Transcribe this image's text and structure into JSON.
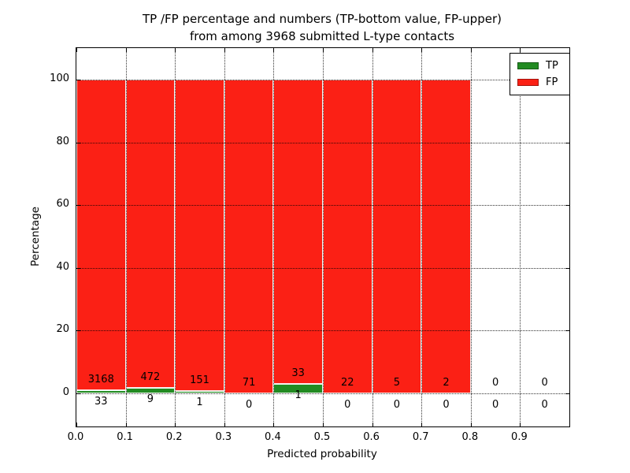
{
  "figure": {
    "title_line1": "TP /FP percentage and numbers (TP-bottom value, FP-upper)",
    "title_line2": "from among 3968 submitted L-type contacts",
    "background": "#ffffff"
  },
  "chart_data": {
    "type": "bar",
    "stacked": true,
    "title": "TP /FP percentage and numbers (TP-bottom value, FP-upper) from among 3968 submitted L-type contacts",
    "xlabel": "Predicted probability",
    "ylabel": "Percentage",
    "total_submitted_contacts": 3968,
    "bins": [
      0.0,
      0.1,
      0.2,
      0.3,
      0.4,
      0.5,
      0.6,
      0.7,
      0.8,
      0.9
    ],
    "bin_width": 0.1,
    "bar_display": "each bar shows TP and FP as percent of bin total; numbers annotate raw counts (TP below axis, FP above TP segment)",
    "series": [
      {
        "name": "TP",
        "color": "#228b22",
        "counts": [
          33,
          9,
          1,
          0,
          1,
          0,
          0,
          0,
          0,
          0
        ]
      },
      {
        "name": "FP",
        "color": "#fb2015",
        "counts": [
          3168,
          472,
          151,
          71,
          33,
          22,
          5,
          2,
          0,
          0
        ]
      }
    ],
    "xlim": [
      0,
      1
    ],
    "ylim": [
      -10.5,
      110.5
    ],
    "xticks": [
      0.0,
      0.1,
      0.2,
      0.3,
      0.4,
      0.5,
      0.6,
      0.7,
      0.8,
      0.9
    ],
    "xtick_labels": [
      "0.0",
      "0.1",
      "0.2",
      "0.3",
      "0.4",
      "0.5",
      "0.6",
      "0.7",
      "0.8",
      "0.9"
    ],
    "yticks": [
      0,
      20,
      40,
      60,
      80,
      100
    ],
    "ytick_labels": [
      "0",
      "20",
      "40",
      "60",
      "80",
      "100"
    ],
    "grid": "dotted, drawn on top of bars",
    "legend": {
      "position": "upper right",
      "entries": [
        "TP",
        "FP"
      ]
    }
  }
}
